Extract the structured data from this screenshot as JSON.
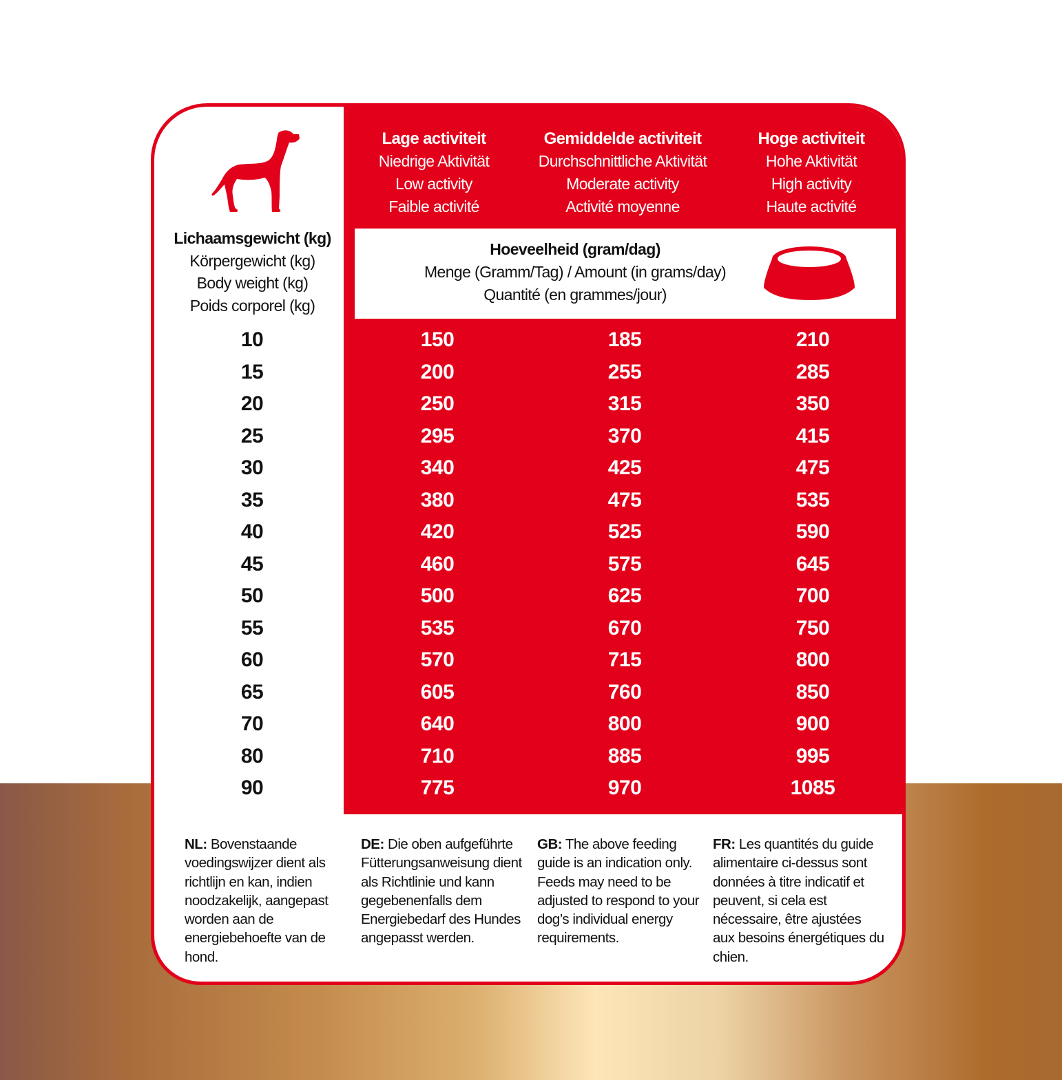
{
  "colors": {
    "brand_red": "#e2001a"
  },
  "icons": {
    "dog": "dog-silhouette-icon",
    "bowl": "food-bowl-icon"
  },
  "weight_header": [
    "Lichaamsgewicht (kg)",
    "Körpergewicht (kg)",
    "Body weight (kg)",
    "Poids corporel (kg)"
  ],
  "activity_headers": [
    {
      "bold": "Lage activiteit",
      "lines": [
        "Niedrige Aktivität",
        "Low activity",
        "Faible activité"
      ]
    },
    {
      "bold": "Gemiddelde activiteit",
      "lines": [
        "Durchschnittliche Aktivität",
        "Moderate activity",
        "Activité moyenne"
      ]
    },
    {
      "bold": "Hoge activiteit",
      "lines": [
        "Hohe Aktivität",
        "High activity",
        "Haute activité"
      ]
    }
  ],
  "amount_header": {
    "bold": "Hoeveelheid (gram/dag)",
    "line1": "Menge (Gramm/Tag) / Amount (in grams/day)",
    "line2": "Quantité (en grammes/jour)"
  },
  "rows": [
    [
      "10",
      "150",
      "185",
      "210"
    ],
    [
      "15",
      "200",
      "255",
      "285"
    ],
    [
      "20",
      "250",
      "315",
      "350"
    ],
    [
      "25",
      "295",
      "370",
      "415"
    ],
    [
      "30",
      "340",
      "425",
      "475"
    ],
    [
      "35",
      "380",
      "475",
      "535"
    ],
    [
      "40",
      "420",
      "525",
      "590"
    ],
    [
      "45",
      "460",
      "575",
      "645"
    ],
    [
      "50",
      "500",
      "625",
      "700"
    ],
    [
      "55",
      "535",
      "670",
      "750"
    ],
    [
      "60",
      "570",
      "715",
      "800"
    ],
    [
      "65",
      "605",
      "760",
      "850"
    ],
    [
      "70",
      "640",
      "800",
      "900"
    ],
    [
      "80",
      "710",
      "885",
      "995"
    ],
    [
      "90",
      "775",
      "970",
      "1085"
    ]
  ],
  "notes": [
    {
      "lang": "NL:",
      "text": " Bovenstaande voedingswijzer dient als richtlijn en kan, indien noodzakelijk, aangepast worden aan de energiebehoefte van de hond."
    },
    {
      "lang": "DE:",
      "text": " Die oben aufgeführte Fütterungsanweisung dient als Richtlinie und kann gegebenenfalls dem Energiebedarf des Hundes angepasst werden."
    },
    {
      "lang": "GB:",
      "text": " The above feeding guide is an indication only. Feeds may need to be adjusted to respond to your dog’s individual energy requirements."
    },
    {
      "lang": "FR:",
      "text": " Les quantités du guide alimentaire ci-dessus sont données à titre indicatif et peuvent, si cela est nécessaire, être ajustées aux besoins énergétiques du chien."
    }
  ]
}
